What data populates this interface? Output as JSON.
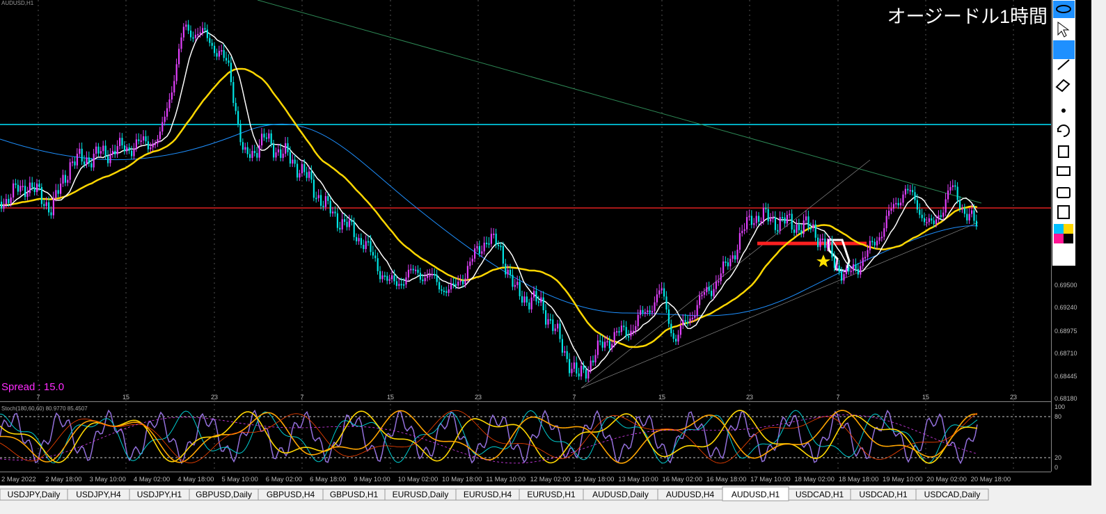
{
  "window_title": "AUDUSD,H1",
  "overlay_label": "オージードル1時間",
  "spread_label": "Spread : 15.0",
  "indicator_label": "Stoch(180,60,60) 80.9770 85.4507",
  "price_axis": [
    "0.69500",
    "0.69240",
    "0.68975",
    "0.68710",
    "0.68445",
    "0.68180"
  ],
  "stoch_axis": [
    "100",
    "80",
    "20",
    "0"
  ],
  "day_axis": [
    "7",
    "15",
    "23",
    "7",
    "15",
    "23",
    "7",
    "15",
    "23",
    "7",
    "15",
    "23"
  ],
  "time_axis": [
    "2 May 2022",
    "2 May 18:00",
    "3 May 10:00",
    "4 May 02:00",
    "4 May 18:00",
    "5 May 10:00",
    "6 May 02:00",
    "6 May 18:00",
    "9 May 10:00",
    "10 May 02:00",
    "10 May 18:00",
    "11 May 10:00",
    "12 May 02:00",
    "12 May 18:00",
    "13 May 10:00",
    "16 May 02:00",
    "16 May 18:00",
    "17 May 10:00",
    "18 May 02:00",
    "18 May 18:00",
    "19 May 10:00",
    "20 May 02:00",
    "20 May 18:00"
  ],
  "tabs": [
    "USDJPY,Daily",
    "USDJPY,H4",
    "USDJPY,H1",
    "GBPUSD,Daily",
    "GBPUSD,H4",
    "GBPUSD,H1",
    "EURUSD,Daily",
    "EURUSD,H4",
    "EURUSD,H1",
    "AUDUSD,Daily",
    "AUDUSD,H4",
    "AUDUSD,H1",
    "USDCAD,H1",
    "USDCAD,H1",
    "USDCAD,Daily"
  ],
  "active_tab": 11
}
